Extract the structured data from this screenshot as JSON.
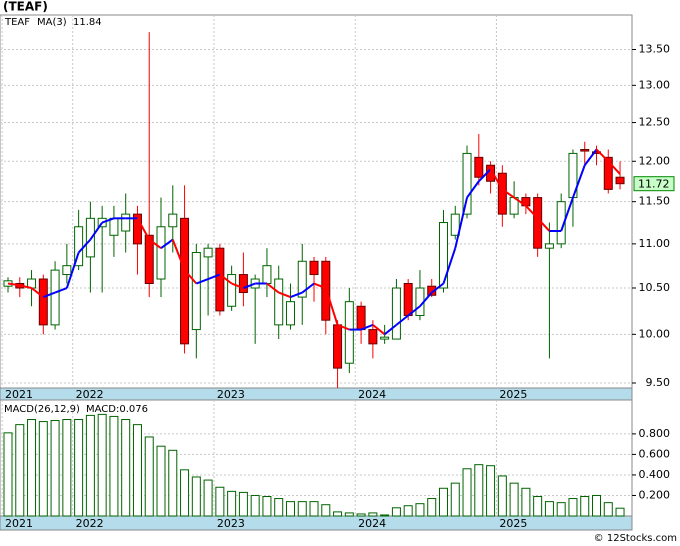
{
  "chart_data": [
    {
      "type": "candlestick",
      "title": "(TEAF)",
      "log_scale": true,
      "grid": true,
      "categories": [
        "2021",
        null,
        null,
        null,
        null,
        null,
        "2022",
        null,
        null,
        null,
        null,
        null,
        null,
        null,
        null,
        null,
        null,
        null,
        "2023",
        null,
        null,
        null,
        null,
        null,
        null,
        null,
        null,
        null,
        null,
        null,
        "2024",
        null,
        null,
        null,
        null,
        null,
        null,
        null,
        null,
        null,
        null,
        null,
        "2025",
        null,
        null,
        null,
        null,
        null,
        null,
        null,
        null,
        null,
        null
      ],
      "series": [
        {
          "name": "TEAF",
          "up_color": "#006400",
          "down_color": "#ff0000",
          "open": [
            10.52,
            10.55,
            10.5,
            10.6,
            10.1,
            10.65,
            10.75,
            10.85,
            11.2,
            11.1,
            11.15,
            11.35,
            11.1,
            10.6,
            11.2,
            11.3,
            10.05,
            10.85,
            10.95,
            10.3,
            10.65,
            10.5,
            10.55,
            10.1,
            10.1,
            10.4,
            10.8,
            10.8,
            10.1,
            9.7,
            10.3,
            10.05,
            9.95,
            9.95,
            10.55,
            10.2,
            10.52,
            10.5,
            11.1,
            11.35,
            12.05,
            11.95,
            11.85,
            11.35,
            11.55,
            11.55,
            10.95,
            11.0,
            11.55,
            12.15,
            12.12,
            12.05,
            11.8
          ],
          "high": [
            10.62,
            10.62,
            10.7,
            10.65,
            10.8,
            11.0,
            11.4,
            11.5,
            11.45,
            11.45,
            11.6,
            11.45,
            13.75,
            11.55,
            11.7,
            11.7,
            11.0,
            11.0,
            11.0,
            10.75,
            10.9,
            10.65,
            10.95,
            10.75,
            10.55,
            11.0,
            10.85,
            10.85,
            10.15,
            10.5,
            10.35,
            10.15,
            10.1,
            10.6,
            10.6,
            10.7,
            10.6,
            11.4,
            11.45,
            12.2,
            12.35,
            12.0,
            11.95,
            11.75,
            11.6,
            11.6,
            11.25,
            11.6,
            12.15,
            12.25,
            12.2,
            12.15,
            12.0
          ],
          "low": [
            10.45,
            10.4,
            10.3,
            10.0,
            10.05,
            10.55,
            10.7,
            10.45,
            10.45,
            10.85,
            10.9,
            10.65,
            10.4,
            10.4,
            10.9,
            9.8,
            9.75,
            10.2,
            10.2,
            10.25,
            10.3,
            9.9,
            10.4,
            9.95,
            10.05,
            10.1,
            10.35,
            10.0,
            9.45,
            9.6,
            9.9,
            9.75,
            9.9,
            9.95,
            10.15,
            10.15,
            10.4,
            10.45,
            11.05,
            11.3,
            11.7,
            11.6,
            11.2,
            11.3,
            11.35,
            10.85,
            9.75,
            10.95,
            11.2,
            11.95,
            11.95,
            11.6,
            11.65
          ],
          "close": [
            10.58,
            10.5,
            10.6,
            10.1,
            10.7,
            10.75,
            11.2,
            11.3,
            11.3,
            11.3,
            11.35,
            11.0,
            10.55,
            11.2,
            11.35,
            9.9,
            10.9,
            10.95,
            10.25,
            10.65,
            10.45,
            10.6,
            10.75,
            10.6,
            10.35,
            10.8,
            10.65,
            10.15,
            9.65,
            10.35,
            10.05,
            9.9,
            9.97,
            10.5,
            10.2,
            10.5,
            10.42,
            11.25,
            11.35,
            12.1,
            11.8,
            11.75,
            11.35,
            11.55,
            11.45,
            10.95,
            11.0,
            11.5,
            12.1,
            12.13,
            12.1,
            11.65,
            11.72
          ]
        },
        {
          "name": "MA(3)",
          "up_color": "#0000ff",
          "down_color": "#ff0000",
          "values": [
            10.55,
            10.53,
            10.5,
            10.4,
            10.45,
            10.5,
            10.9,
            11.05,
            11.25,
            11.3,
            11.3,
            11.3,
            11.05,
            10.95,
            11.05,
            10.7,
            10.55,
            10.6,
            10.65,
            10.55,
            10.5,
            10.55,
            10.55,
            10.45,
            10.4,
            10.45,
            10.55,
            10.5,
            10.1,
            10.05,
            10.05,
            10.1,
            10.0,
            10.1,
            10.2,
            10.3,
            10.45,
            10.55,
            10.95,
            11.55,
            11.75,
            11.9,
            11.65,
            11.55,
            11.45,
            11.3,
            11.15,
            11.15,
            11.55,
            11.95,
            12.15,
            12.0,
            11.84
          ]
        }
      ],
      "last_label_color": "#c8ffc8",
      "ylim": [
        9.45,
        14.0
      ],
      "yticks": [
        {
          "value": 9.5,
          "label": "9.50"
        },
        {
          "value": 10,
          "label": "10.00"
        },
        {
          "value": 10.5,
          "label": "10.50"
        },
        {
          "value": 11,
          "label": "11.00"
        },
        {
          "value": 11.5,
          "label": "11.50"
        },
        {
          "value": 12,
          "label": "12.00"
        },
        {
          "value": 12.5,
          "label": "12.50"
        },
        {
          "value": 13,
          "label": "13.00"
        },
        {
          "value": 13.5,
          "label": "13.50"
        }
      ]
    },
    {
      "type": "bar",
      "indicator": "MACD(26,12,9)",
      "legend_value": "MACD:0.076",
      "color": "#006400",
      "grid": true,
      "categories": [
        "2021",
        null,
        null,
        null,
        null,
        null,
        "2022",
        null,
        null,
        null,
        null,
        null,
        null,
        null,
        null,
        null,
        null,
        null,
        "2023",
        null,
        null,
        null,
        null,
        null,
        null,
        null,
        null,
        null,
        null,
        null,
        "2024",
        null,
        null,
        null,
        null,
        null,
        null,
        null,
        null,
        null,
        null,
        null,
        "2025",
        null,
        null,
        null,
        null,
        null,
        null,
        null,
        null,
        null,
        null
      ],
      "values": [
        0.81,
        0.89,
        0.94,
        0.92,
        0.93,
        0.94,
        0.94,
        0.98,
        0.99,
        0.97,
        0.94,
        0.89,
        0.77,
        0.68,
        0.64,
        0.45,
        0.38,
        0.35,
        0.28,
        0.24,
        0.23,
        0.2,
        0.19,
        0.17,
        0.14,
        0.14,
        0.14,
        0.11,
        0.04,
        0.03,
        0.02,
        0.03,
        0.01,
        0.08,
        0.1,
        0.12,
        0.17,
        0.27,
        0.32,
        0.46,
        0.5,
        0.49,
        0.39,
        0.32,
        0.27,
        0.19,
        0.14,
        0.13,
        0.17,
        0.19,
        0.2,
        0.13,
        0.076
      ],
      "ylim": [
        0,
        1.13
      ],
      "yticks": [
        {
          "value": 0.2,
          "label": "0.200"
        },
        {
          "value": 0.4,
          "label": "0.400"
        },
        {
          "value": 0.6,
          "label": "0.600"
        },
        {
          "value": 0.8,
          "label": "0.800"
        }
      ]
    }
  ],
  "footer": "© 12Stocks.com"
}
